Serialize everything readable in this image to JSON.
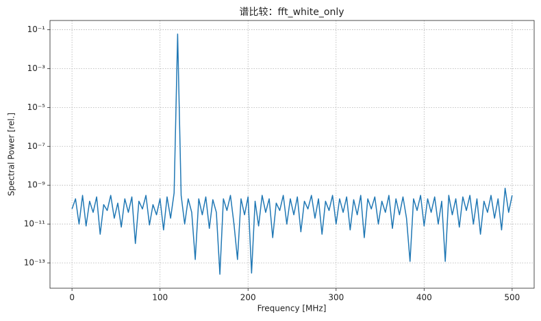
{
  "chart_data": {
    "type": "line",
    "title": "谱比较：fft_white_only",
    "xlabel": "Frequency [MHz]",
    "ylabel": "Spectral Power [rel.]",
    "x": [
      0,
      4,
      8,
      12,
      16,
      20,
      24,
      28,
      32,
      36,
      40,
      44,
      48,
      52,
      56,
      60,
      64,
      68,
      72,
      76,
      80,
      84,
      88,
      92,
      96,
      100,
      104,
      108,
      112,
      116,
      120,
      124,
      128,
      132,
      136,
      140,
      144,
      148,
      152,
      156,
      160,
      164,
      168,
      172,
      176,
      180,
      184,
      188,
      192,
      196,
      200,
      204,
      208,
      212,
      216,
      220,
      224,
      228,
      232,
      236,
      240,
      244,
      248,
      252,
      256,
      260,
      264,
      268,
      272,
      276,
      280,
      284,
      288,
      292,
      296,
      300,
      304,
      308,
      312,
      316,
      320,
      324,
      328,
      332,
      336,
      340,
      344,
      348,
      352,
      356,
      360,
      364,
      368,
      372,
      376,
      380,
      384,
      388,
      392,
      396,
      400,
      404,
      408,
      412,
      416,
      420,
      424,
      428,
      432,
      436,
      440,
      444,
      448,
      452,
      456,
      460,
      464,
      468,
      472,
      476,
      480,
      484,
      488,
      492,
      496,
      500
    ],
    "values": [
      6e-11,
      2e-10,
      1e-11,
      3e-10,
      8e-12,
      1.5e-10,
      4e-11,
      2.5e-10,
      3e-12,
      1e-10,
      5e-11,
      3e-10,
      2e-11,
      1.2e-10,
      7e-12,
      2e-10,
      4e-11,
      2.5e-10,
      1e-12,
      1.5e-10,
      6e-11,
      3e-10,
      9e-12,
      1e-10,
      3e-11,
      2e-10,
      5e-12,
      2.5e-10,
      2e-11,
      4e-10,
      0.06,
      3e-10,
      1e-11,
      2e-10,
      4e-11,
      1.5e-13,
      2e-10,
      3e-11,
      2.5e-10,
      6e-12,
      1.8e-10,
      4e-11,
      2.6e-14,
      2e-10,
      5e-11,
      3e-10,
      1e-11,
      1.5e-13,
      2e-10,
      3e-11,
      2.5e-10,
      3e-14,
      1.5e-10,
      8e-12,
      3e-10,
      4e-11,
      2e-10,
      2e-12,
      1.2e-10,
      5e-11,
      3e-10,
      1e-11,
      2e-10,
      3e-11,
      2.5e-10,
      4e-12,
      1.5e-10,
      6e-11,
      3e-10,
      2e-11,
      2e-10,
      3e-12,
      1.5e-10,
      5e-11,
      3e-10,
      1e-11,
      2e-10,
      4e-11,
      2.5e-10,
      5e-12,
      1.8e-10,
      3e-11,
      3e-10,
      2e-12,
      2e-10,
      6e-11,
      2.5e-10,
      1e-11,
      1.5e-10,
      4e-11,
      3e-10,
      6e-12,
      2e-10,
      3e-11,
      2.5e-10,
      2e-11,
      1.2e-13,
      2e-10,
      5e-11,
      3e-10,
      8e-12,
      2e-10,
      4e-11,
      2.5e-10,
      1e-11,
      1.5e-10,
      1.2e-13,
      3e-10,
      3e-11,
      2e-10,
      7e-12,
      2.5e-10,
      5e-11,
      3e-10,
      1e-11,
      2e-10,
      3e-12,
      1.5e-10,
      4e-11,
      3e-10,
      2e-11,
      2e-10,
      5e-12,
      7e-10,
      4e-11,
      3e-10
    ],
    "color": "#1f77b4",
    "xlim": [
      -25,
      525
    ],
    "xticks": [
      0,
      100,
      200,
      300,
      400,
      500
    ],
    "ylim": [
      5e-15,
      0.3
    ],
    "log_y": true,
    "yticks": [
      {
        "value": 0.1,
        "label": "10⁻¹"
      },
      {
        "value": 0.001,
        "label": "10⁻³"
      },
      {
        "value": 1e-05,
        "label": "10⁻⁵"
      },
      {
        "value": 1e-07,
        "label": "10⁻⁷"
      },
      {
        "value": 1e-09,
        "label": "10⁻⁹"
      },
      {
        "value": 1e-11,
        "label": "10⁻¹¹"
      },
      {
        "value": 1e-13,
        "label": "10⁻¹³"
      }
    ],
    "grid": true
  }
}
